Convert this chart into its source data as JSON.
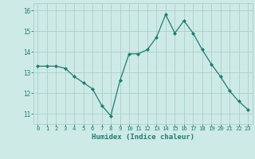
{
  "x": [
    0,
    1,
    2,
    3,
    4,
    5,
    6,
    7,
    8,
    9,
    10,
    11,
    12,
    13,
    14,
    15,
    16,
    17,
    18,
    19,
    20,
    21,
    22,
    23
  ],
  "y": [
    13.3,
    13.3,
    13.3,
    13.2,
    12.8,
    12.5,
    12.2,
    11.4,
    10.9,
    12.6,
    13.9,
    13.9,
    14.1,
    14.7,
    15.8,
    14.9,
    15.5,
    14.9,
    14.1,
    13.4,
    12.8,
    12.1,
    11.6,
    11.2
  ],
  "xlabel": "Humidex (Indice chaleur)",
  "ylim": [
    10.5,
    16.35
  ],
  "xlim": [
    -0.5,
    23.5
  ],
  "line_color": "#1e7d72",
  "marker_color": "#1e7d72",
  "bg_color": "#ceeae7",
  "grid_color": "#aacfcb",
  "tick_color": "#1e7d72",
  "label_color": "#1e7d72",
  "yticks": [
    11,
    12,
    13,
    14,
    15,
    16
  ],
  "xticks": [
    0,
    1,
    2,
    3,
    4,
    5,
    6,
    7,
    8,
    9,
    10,
    11,
    12,
    13,
    14,
    15,
    16,
    17,
    18,
    19,
    20,
    21,
    22,
    23
  ]
}
